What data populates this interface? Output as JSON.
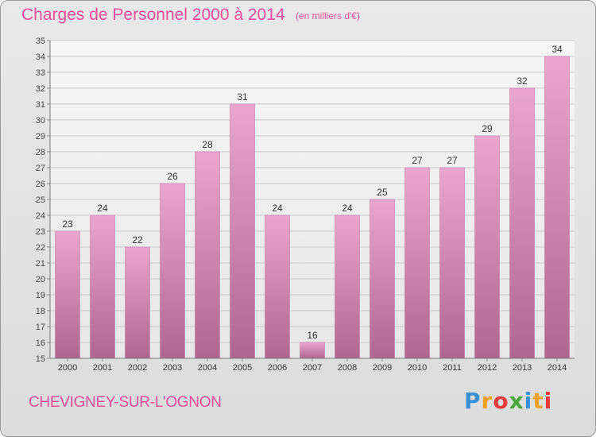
{
  "header": {
    "title": "Charges de Personnel 2000 à 2014",
    "subtitle": "(en milliers d'€)"
  },
  "footer": {
    "commune": "CHEVIGNEY-SUR-L'OGNON",
    "logo_letters": [
      "P",
      "r",
      "o",
      "x",
      "i",
      "t",
      "i"
    ],
    "logo_colors": [
      "#3b8fd4",
      "#f0a020",
      "#e83a3a",
      "#4aa83a",
      "#3b8fd4",
      "#f0a020",
      "#e83a3a"
    ]
  },
  "chart_data": {
    "type": "bar",
    "categories": [
      "2000",
      "2001",
      "2002",
      "2003",
      "2004",
      "2005",
      "2006",
      "2007",
      "2008",
      "2009",
      "2010",
      "2011",
      "2012",
      "2013",
      "2014"
    ],
    "values": [
      23,
      24,
      22,
      26,
      28,
      31,
      24,
      16,
      24,
      25,
      27,
      27,
      29,
      32,
      34
    ],
    "ylim": [
      15,
      35
    ],
    "yticks": [
      15,
      16,
      17,
      18,
      19,
      20,
      21,
      22,
      23,
      24,
      25,
      26,
      27,
      28,
      29,
      30,
      31,
      32,
      33,
      34,
      35
    ],
    "grid": true,
    "bar_color": "#d98ab8",
    "title": "Charges de Personnel 2000 à 2014",
    "xlabel": "",
    "ylabel": ""
  }
}
